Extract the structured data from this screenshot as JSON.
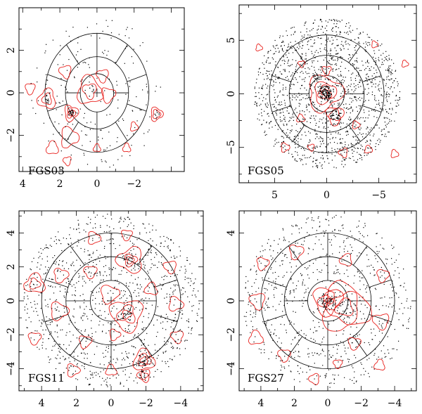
{
  "chart_data": [
    {
      "type": "scatter",
      "label": "FGS03",
      "xlim": [
        4.2,
        -4.7
      ],
      "ylim": [
        -3.7,
        4.0
      ],
      "xticks": [
        4,
        2,
        0,
        -2
      ],
      "xtick_labels": [
        "4",
        "2",
        "0",
        "−2"
      ],
      "yticks": [
        2,
        0,
        -2
      ],
      "ytick_labels": [
        "2",
        "0",
        "−2"
      ],
      "x_tick_labels_visible": true,
      "rings": [
        0.9,
        1.7,
        2.8
      ],
      "outer_spokes": 10,
      "inner_spokes": 4,
      "n_points": 200,
      "clusters": [
        {
          "x": 2.7,
          "y": -0.3,
          "n": 14,
          "spread": 0.2
        },
        {
          "x": 1.4,
          "y": -0.95,
          "n": 16,
          "spread": 0.15
        },
        {
          "x": 0.4,
          "y": 0.1,
          "n": 8,
          "spread": 0.3
        },
        {
          "x": -3.2,
          "y": -1.0,
          "n": 6,
          "spread": 0.2
        }
      ],
      "contours": [
        {
          "x": 2.7,
          "y": -0.3,
          "r": [
            0.25,
            0.45
          ]
        },
        {
          "x": 1.4,
          "y": -0.95,
          "r": [
            0.12,
            0.22,
            0.35
          ]
        },
        {
          "x": 3.6,
          "y": 0.2,
          "r": [
            0.25
          ]
        },
        {
          "x": 1.7,
          "y": 1.0,
          "r": [
            0.3
          ]
        },
        {
          "x": 0.4,
          "y": 0.1,
          "r": [
            0.35,
            0.65
          ]
        },
        {
          "x": -0.6,
          "y": -0.1,
          "r": [
            0.35
          ]
        },
        {
          "x": -0.3,
          "y": 0.8,
          "r": [
            0.3
          ]
        },
        {
          "x": -3.2,
          "y": -1.0,
          "r": [
            0.2,
            0.3
          ]
        },
        {
          "x": 1.5,
          "y": -2.1,
          "r": [
            0.45
          ]
        },
        {
          "x": 2.4,
          "y": -2.6,
          "r": [
            0.3
          ]
        },
        {
          "x": 1.6,
          "y": -3.2,
          "r": [
            0.2
          ]
        },
        {
          "x": -1.6,
          "y": -2.6,
          "r": [
            0.2
          ]
        },
        {
          "x": 0.0,
          "y": -2.6,
          "r": [
            0.18
          ]
        },
        {
          "x": -2.0,
          "y": -1.6,
          "r": [
            0.2
          ]
        }
      ]
    },
    {
      "type": "scatter",
      "label": "FGS05",
      "xlim": [
        8.4,
        -8.6
      ],
      "ylim": [
        -8.3,
        8.3
      ],
      "xticks": [
        5,
        0,
        -5
      ],
      "xtick_labels": [
        "5",
        "0",
        "−5"
      ],
      "yticks": [
        5,
        0,
        -5
      ],
      "ytick_labels": [
        "5",
        "0",
        "−5"
      ],
      "x_tick_labels_visible": true,
      "rings": [
        1.7,
        3.6,
        5.5
      ],
      "outer_spokes": 10,
      "inner_spokes": 4,
      "n_points": 1500,
      "clusters": [
        {
          "x": 0.2,
          "y": 0.1,
          "n": 90,
          "spread": 0.7
        },
        {
          "x": -0.8,
          "y": -2.0,
          "n": 25,
          "spread": 0.5
        },
        {
          "x": 0.9,
          "y": 1.6,
          "n": 15,
          "spread": 0.4
        }
      ],
      "contours": [
        {
          "x": 0.2,
          "y": 0.1,
          "r": [
            0.3,
            0.6,
            1.0,
            1.6
          ]
        },
        {
          "x": 0.0,
          "y": 2.2,
          "r": [
            0.4
          ]
        },
        {
          "x": -0.8,
          "y": -2.0,
          "r": [
            0.5,
            0.8
          ]
        },
        {
          "x": 6.5,
          "y": 4.3,
          "r": [
            0.3
          ]
        },
        {
          "x": -4.6,
          "y": 4.6,
          "r": [
            0.3
          ]
        },
        {
          "x": -7.5,
          "y": 2.8,
          "r": [
            0.3
          ]
        },
        {
          "x": 2.5,
          "y": -2.3,
          "r": [
            0.35
          ]
        },
        {
          "x": 4.0,
          "y": -5.0,
          "r": [
            0.4
          ]
        },
        {
          "x": -1.6,
          "y": -5.5,
          "r": [
            0.4
          ]
        },
        {
          "x": -4.0,
          "y": -5.2,
          "r": [
            0.35
          ]
        },
        {
          "x": -6.5,
          "y": -5.6,
          "r": [
            0.35
          ]
        },
        {
          "x": 2.4,
          "y": 2.8,
          "r": [
            0.3
          ]
        },
        {
          "x": 1.5,
          "y": -5.0,
          "r": [
            0.3
          ]
        },
        {
          "x": -2.8,
          "y": -2.9,
          "r": [
            0.35
          ]
        }
      ]
    },
    {
      "type": "scatter",
      "label": "FGS11",
      "xlim": [
        5.3,
        -5.3
      ],
      "ylim": [
        -5.3,
        5.3
      ],
      "xticks": [
        4,
        2,
        0,
        -2,
        -4
      ],
      "xtick_labels": [
        "4",
        "2",
        "0",
        "−2",
        "−4"
      ],
      "yticks": [
        4,
        2,
        0,
        -2,
        -4
      ],
      "ytick_labels": [
        "4",
        "2",
        "0",
        "−2",
        "−4"
      ],
      "x_tick_labels_visible": true,
      "rings": [
        1.2,
        2.6,
        4.0
      ],
      "outer_spokes": 10,
      "inner_spokes": 4,
      "n_points": 1100,
      "clusters": [
        {
          "x": -1.9,
          "y": -3.5,
          "n": 25,
          "spread": 0.4
        },
        {
          "x": -1.9,
          "y": -4.4,
          "n": 15,
          "spread": 0.3
        },
        {
          "x": -0.9,
          "y": -0.8,
          "n": 18,
          "spread": 0.4
        },
        {
          "x": -1.1,
          "y": 2.4,
          "n": 16,
          "spread": 0.4
        }
      ],
      "contours": [
        {
          "x": -1.9,
          "y": -3.5,
          "r": [
            0.2,
            0.35,
            0.6
          ]
        },
        {
          "x": -1.9,
          "y": -4.4,
          "r": [
            0.2,
            0.35
          ]
        },
        {
          "x": -1.1,
          "y": 2.4,
          "r": [
            0.2,
            0.35,
            0.7
          ]
        },
        {
          "x": -0.9,
          "y": -0.8,
          "r": [
            0.25,
            0.5,
            0.9
          ]
        },
        {
          "x": 0.1,
          "y": 0.4,
          "r": [
            0.5
          ]
        },
        {
          "x": 4.4,
          "y": 1.0,
          "r": [
            0.3,
            0.55
          ]
        },
        {
          "x": 2.9,
          "y": 1.5,
          "r": [
            0.4
          ]
        },
        {
          "x": 1.2,
          "y": 1.7,
          "r": [
            0.35
          ]
        },
        {
          "x": 3.0,
          "y": -0.6,
          "r": [
            0.5
          ]
        },
        {
          "x": 4.4,
          "y": -2.2,
          "r": [
            0.35
          ]
        },
        {
          "x": 1.5,
          "y": -2.4,
          "r": [
            0.35
          ]
        },
        {
          "x": -3.4,
          "y": 2.0,
          "r": [
            0.35
          ]
        },
        {
          "x": -3.7,
          "y": -0.2,
          "r": [
            0.4
          ]
        },
        {
          "x": -3.8,
          "y": -2.1,
          "r": [
            0.35
          ]
        },
        {
          "x": 1.0,
          "y": 3.7,
          "r": [
            0.35
          ]
        },
        {
          "x": -0.9,
          "y": 3.9,
          "r": [
            0.3
          ]
        },
        {
          "x": -2.3,
          "y": 0.7,
          "r": [
            0.35
          ]
        },
        {
          "x": 2.2,
          "y": -4.1,
          "r": [
            0.35
          ]
        },
        {
          "x": 0.0,
          "y": -4.1,
          "r": [
            0.3
          ]
        },
        {
          "x": -0.2,
          "y": -2.0,
          "r": [
            0.3
          ]
        }
      ]
    },
    {
      "type": "scatter",
      "label": "FGS27",
      "xlim": [
        5.3,
        -5.3
      ],
      "ylim": [
        -5.3,
        5.3
      ],
      "xticks": [
        4,
        2,
        0,
        -2,
        -4
      ],
      "xtick_labels": [
        "4",
        "2",
        "0",
        "−2",
        "−4"
      ],
      "yticks": [
        4,
        0,
        -2,
        -4
      ],
      "ytick_labels": [
        "4",
        "0",
        "−2",
        "−4"
      ],
      "x_tick_labels_visible": true,
      "rings": [
        1.2,
        2.6,
        4.0
      ],
      "outer_spokes": 10,
      "inner_spokes": 4,
      "n_points": 800,
      "clusters": [
        {
          "x": 0.0,
          "y": 0.0,
          "n": 50,
          "spread": 0.5
        },
        {
          "x": -1.2,
          "y": -0.5,
          "n": 25,
          "spread": 0.6
        }
      ],
      "contours": [
        {
          "x": 0.0,
          "y": 0.0,
          "r": [
            0.15,
            0.3,
            0.5,
            0.8
          ]
        },
        {
          "x": -1.0,
          "y": -0.4,
          "r": [
            0.5,
            0.9,
            1.4
          ]
        },
        {
          "x": 3.9,
          "y": 2.2,
          "r": [
            0.35
          ]
        },
        {
          "x": 1.9,
          "y": 2.9,
          "r": [
            0.4
          ]
        },
        {
          "x": 4.2,
          "y": 0.0,
          "r": [
            0.45
          ]
        },
        {
          "x": 4.3,
          "y": -2.2,
          "r": [
            0.4
          ]
        },
        {
          "x": -3.3,
          "y": 1.5,
          "r": [
            0.35
          ]
        },
        {
          "x": -3.2,
          "y": -1.2,
          "r": [
            0.45
          ]
        },
        {
          "x": -1.1,
          "y": 2.4,
          "r": [
            0.35
          ]
        },
        {
          "x": 2.6,
          "y": -3.2,
          "r": [
            0.35
          ]
        },
        {
          "x": -1.6,
          "y": -2.5,
          "r": [
            0.35
          ]
        },
        {
          "x": -3.1,
          "y": -3.8,
          "r": [
            0.3
          ]
        },
        {
          "x": 0.8,
          "y": -4.6,
          "r": [
            0.3
          ]
        },
        {
          "x": -0.6,
          "y": -3.7,
          "r": [
            0.25
          ]
        }
      ]
    }
  ],
  "style": {
    "contour_color": "#e8201c",
    "point_color": "#000000",
    "frame_color": "#000000"
  }
}
